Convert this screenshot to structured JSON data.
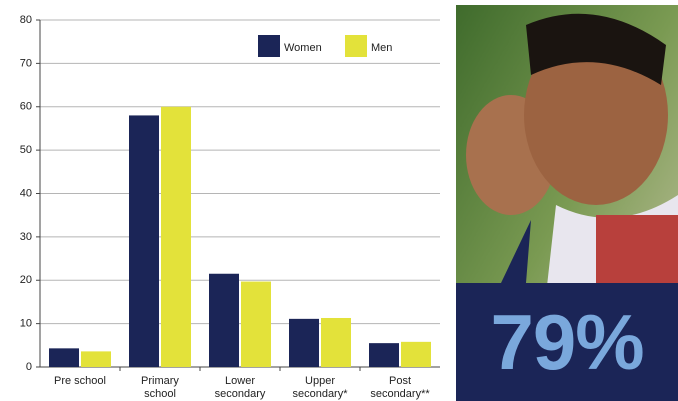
{
  "chart_data": {
    "type": "bar",
    "categories": [
      "Pre school",
      "Primary school",
      "Lower secondary",
      "Upper secondary*",
      "Post secondary**"
    ],
    "series": [
      {
        "name": "Women",
        "color": "#1b2557",
        "values": [
          4.3,
          58,
          21.5,
          11.1,
          5.5
        ]
      },
      {
        "name": "Men",
        "color": "#e3e23a",
        "values": [
          3.6,
          60,
          19.7,
          11.3,
          5.8
        ]
      }
    ],
    "ylim": [
      0,
      80
    ],
    "yticks": [
      0,
      10,
      20,
      30,
      40,
      50,
      60,
      70,
      80
    ],
    "grid": true,
    "legend": "top-right"
  },
  "photo": {
    "callout": "79%"
  }
}
